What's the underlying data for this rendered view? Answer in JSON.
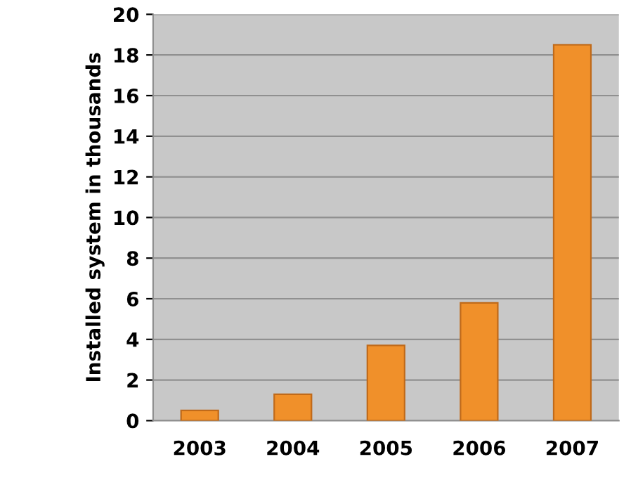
{
  "chart_data": {
    "type": "bar",
    "ylabel": "Installed system in thousands",
    "categories": [
      "2003",
      "2004",
      "2005",
      "2006",
      "2007"
    ],
    "values": [
      0.5,
      1.3,
      3.7,
      5.8,
      18.5
    ],
    "color": "#f0902a",
    "ylim": [
      0,
      20
    ],
    "yticks": [
      0,
      2,
      4,
      6,
      8,
      10,
      12,
      14,
      16,
      18,
      20
    ],
    "grid": "y"
  }
}
